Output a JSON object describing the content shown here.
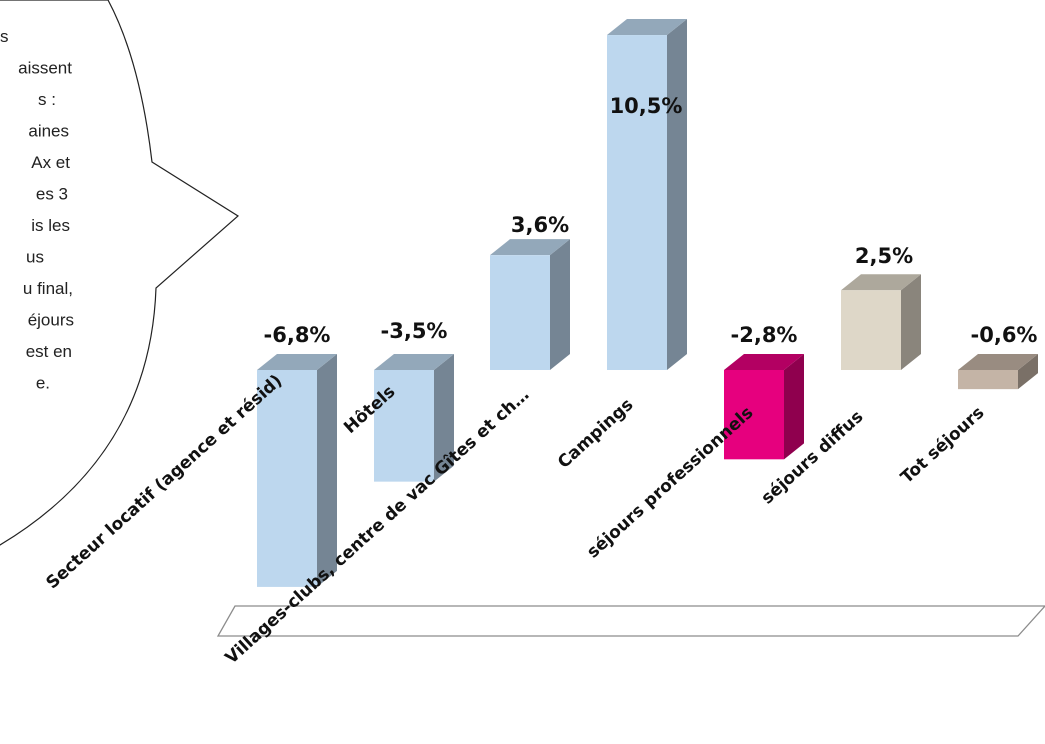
{
  "callout": {
    "lines": [
      "s",
      "aissent",
      "s :",
      "aines",
      "Ax et",
      "es 3",
      "is les",
      "us",
      "u final,",
      "éjours",
      "est en",
      "e."
    ]
  },
  "chart_data": {
    "type": "bar",
    "title": "",
    "xlabel": "",
    "ylabel": "",
    "categories": [
      "Secteur locatif (agence et résid)",
      "Hôtels",
      "Villages-clubs, centre de vac Gîtes et ch…",
      "Campings",
      "séjours professionnels",
      "séjours diffus",
      "Tot séjours"
    ],
    "values": [
      -6.8,
      -3.5,
      3.6,
      10.5,
      -2.8,
      2.5,
      -0.6
    ],
    "value_labels": [
      "-6,8%",
      "-3,5%",
      "3,6%",
      "10,5%",
      "-2,8%",
      "2,5%",
      "-0,6%"
    ],
    "ylim": [
      -6.8,
      10.5
    ],
    "grid": false,
    "legend": "none",
    "rendering": "3d-columns",
    "colors": {
      "Secteur locatif (agence et résid)": "#bdd7ee",
      "Hôtels": "#bdd7ee",
      "Villages-clubs, centre de vac Gîtes et ch…": "#bdd7ee",
      "Campings": "#bdd7ee",
      "séjours professionnels": "#e6007e",
      "séjours diffus": "#ded7c8",
      "Tot séjours": "#c4b4a6"
    }
  }
}
